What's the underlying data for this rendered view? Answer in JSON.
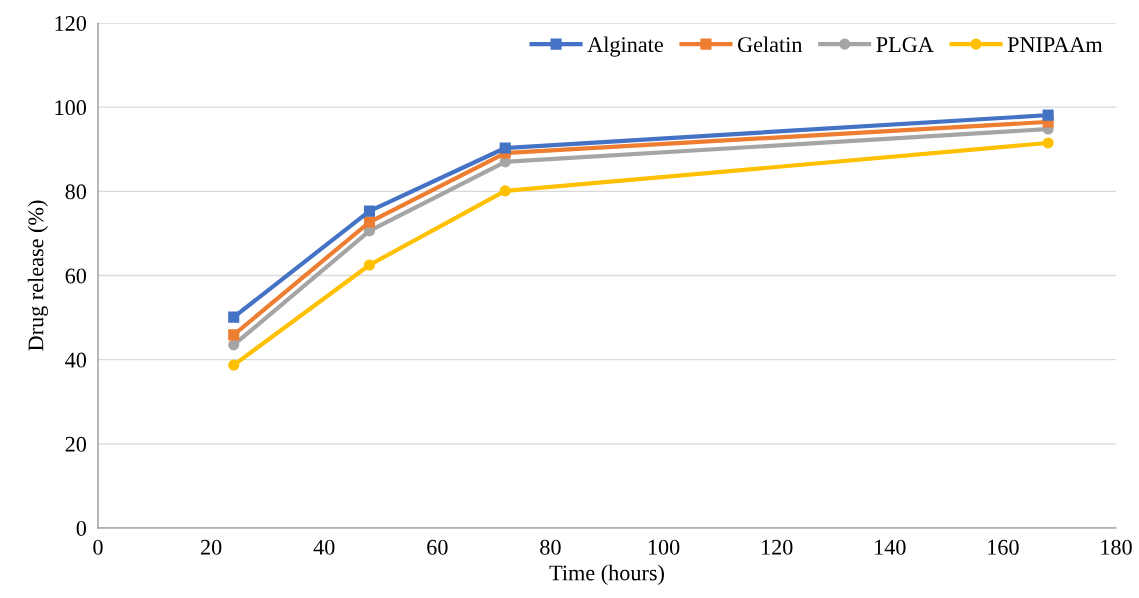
{
  "chart_data": {
    "type": "line",
    "xlabel": "Time (hours)",
    "ylabel": "Drug release (%)",
    "x": [
      24,
      48,
      72,
      168
    ],
    "series": [
      {
        "name": "Alginate",
        "color": "#4472c4",
        "marker": "square",
        "values": [
          50.1,
          75.3,
          90.3,
          98.1
        ]
      },
      {
        "name": "Gelatin",
        "color": "#ed7d31",
        "marker": "square",
        "values": [
          45.9,
          72.7,
          89.1,
          96.5
        ]
      },
      {
        "name": "PLGA",
        "color": "#a5a5a5",
        "marker": "circle",
        "values": [
          43.5,
          70.6,
          87.0,
          94.8
        ]
      },
      {
        "name": "PNIPAAm",
        "color": "#ffc000",
        "marker": "circle",
        "values": [
          38.7,
          62.5,
          80.1,
          91.5
        ]
      }
    ],
    "xlim": [
      0,
      180
    ],
    "xticks": [
      0,
      20,
      40,
      60,
      80,
      100,
      120,
      140,
      160,
      180
    ],
    "ylim": [
      0,
      120
    ],
    "yticks": [
      0,
      20,
      40,
      60,
      80,
      100,
      120
    ],
    "grid": "y",
    "legend": "top right",
    "line_style": "solid"
  }
}
